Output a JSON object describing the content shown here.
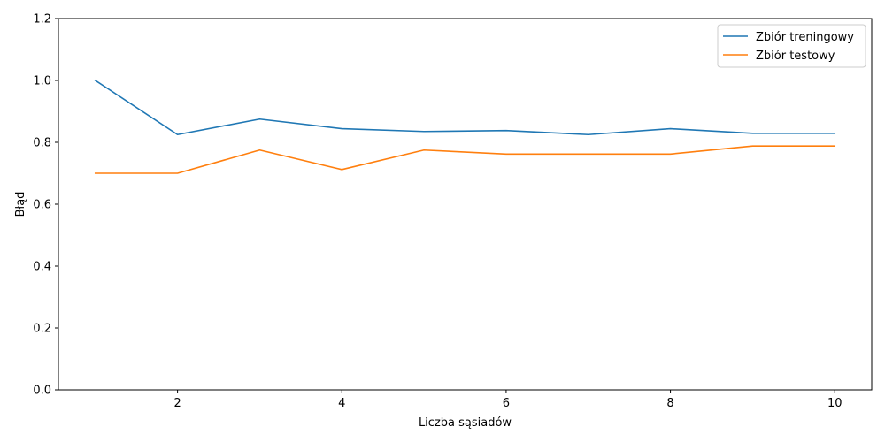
{
  "chart_data": {
    "type": "line",
    "xlabel": "Liczba sąsiadów",
    "ylabel": "Błąd",
    "xlim": [
      0.55,
      10.45
    ],
    "ylim": [
      0.0,
      1.2
    ],
    "xticks": [
      2,
      4,
      6,
      8,
      10
    ],
    "yticks": [
      0.0,
      0.2,
      0.4,
      0.6,
      0.8,
      1.0,
      1.2
    ],
    "legend_position": "top-right",
    "grid": false,
    "x": [
      1,
      2,
      3,
      4,
      5,
      6,
      7,
      8,
      9,
      10
    ],
    "series": [
      {
        "name": "Zbiór treningowy",
        "color": "#1f77b4",
        "values": [
          1.0,
          0.825,
          0.875,
          0.844,
          0.835,
          0.838,
          0.825,
          0.844,
          0.829,
          0.829
        ]
      },
      {
        "name": "Zbiór testowy",
        "color": "#ff7f0e",
        "values": [
          0.7,
          0.7,
          0.775,
          0.712,
          0.775,
          0.762,
          0.762,
          0.762,
          0.788,
          0.788
        ]
      }
    ]
  }
}
